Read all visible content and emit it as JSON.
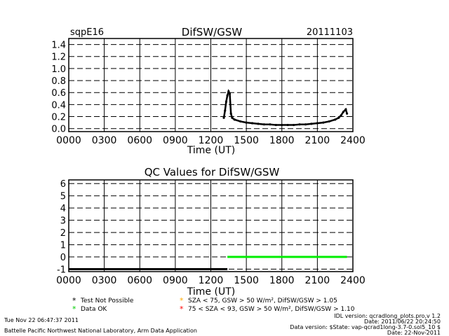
{
  "top": {
    "site": "sqpE16",
    "date": "20111103"
  },
  "footer": {
    "left_line1": "Tue Nov 22 06:47:37 2011",
    "left_line2": "Battelle Pacific Northwest National Laboratory, Arm Data Application",
    "right_line1": "IDL version: qcradlong_plots.pro,v 1.2",
    "right_line2": "Date: 2011/06/22 20:24:50",
    "right_line3": "Data version: $State: vap-qcrad1long-3.7-0.sol5_10 $",
    "right_line4": "Date: 22-Nov-2011"
  },
  "legend": [
    {
      "symbol": "*",
      "color": "#000000",
      "text": "Test Not Possible"
    },
    {
      "symbol": "*",
      "color": "#00cc00",
      "text": "Data OK"
    },
    {
      "symbol": "*",
      "color": "#ffaa00",
      "text": "SZA < 75, GSW > 50 W/m², DifSW/GSW > 1.05"
    },
    {
      "symbol": "*",
      "color": "#ff0000",
      "text": "75 < SZA < 93, GSW > 50 W/m², DifSW/GSW > 1.10"
    }
  ],
  "chart_data": [
    {
      "type": "scatter",
      "title": "DifSW/GSW",
      "xlabel": "Time (UT)",
      "ylabel": "",
      "xlim": [
        0,
        2400
      ],
      "ylim": [
        -0.05,
        1.5
      ],
      "x_ticks": [
        "0000",
        "0300",
        "0600",
        "0900",
        "1200",
        "1500",
        "1800",
        "2100",
        "2400"
      ],
      "y_ticks": [
        "0.0",
        "0.2",
        "0.4",
        "0.6",
        "0.8",
        "1.0",
        "1.2",
        "1.4"
      ],
      "grid": true,
      "series": [
        {
          "color": "#000000",
          "x": [
            1310,
            1320,
            1330,
            1340,
            1350,
            1360,
            1370,
            1380,
            1400,
            1450,
            1500,
            1550,
            1600,
            1650,
            1700,
            1750,
            1800,
            1850,
            1900,
            1950,
            2000,
            2050,
            2100,
            2150,
            2200,
            2250,
            2280,
            2300,
            2320,
            2340,
            2350
          ],
          "y": [
            0.18,
            0.3,
            0.45,
            0.55,
            0.62,
            0.58,
            0.25,
            0.18,
            0.15,
            0.12,
            0.1,
            0.09,
            0.08,
            0.07,
            0.07,
            0.06,
            0.06,
            0.06,
            0.06,
            0.07,
            0.07,
            0.08,
            0.09,
            0.1,
            0.12,
            0.15,
            0.18,
            0.22,
            0.28,
            0.32,
            0.25
          ]
        }
      ]
    },
    {
      "type": "line",
      "title": "QC Values for DifSW/GSW",
      "xlabel": "Time (UT)",
      "ylabel": "",
      "xlim": [
        0,
        2400
      ],
      "ylim": [
        -1.2,
        6.3
      ],
      "x_ticks": [
        "0000",
        "0300",
        "0600",
        "0900",
        "1200",
        "1500",
        "1800",
        "2100",
        "2400"
      ],
      "y_ticks": [
        "-1",
        "0",
        "1",
        "2",
        "3",
        "4",
        "5",
        "6"
      ],
      "grid": true,
      "series": [
        {
          "color": "#000000",
          "x": [
            0,
            1340
          ],
          "y": [
            -1,
            -1
          ]
        },
        {
          "color": "#00ee00",
          "x": [
            1340,
            2350
          ],
          "y": [
            0,
            0
          ]
        }
      ]
    }
  ]
}
